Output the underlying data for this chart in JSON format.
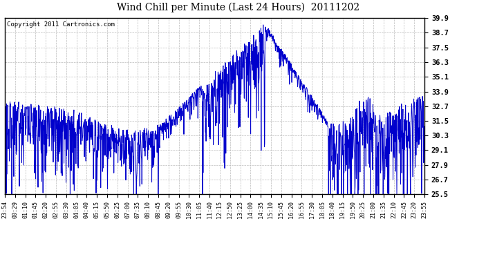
{
  "title": "Wind Chill per Minute (Last 24 Hours)  20111202",
  "copyright_text": "Copyright 2011 Cartronics.com",
  "line_color": "#0000cc",
  "background_color": "#ffffff",
  "grid_color": "#bbbbbb",
  "yticks": [
    25.5,
    26.7,
    27.9,
    29.1,
    30.3,
    31.5,
    32.7,
    33.9,
    35.1,
    36.3,
    37.5,
    38.7,
    39.9
  ],
  "ylim": [
    25.5,
    39.9
  ],
  "x_tick_labels": [
    "23:54",
    "00:29",
    "01:10",
    "01:45",
    "02:20",
    "02:55",
    "03:30",
    "04:05",
    "04:40",
    "05:15",
    "05:50",
    "06:25",
    "07:00",
    "07:35",
    "08:10",
    "08:45",
    "09:20",
    "09:55",
    "10:30",
    "11:05",
    "11:40",
    "12:15",
    "12:50",
    "13:25",
    "14:00",
    "14:35",
    "15:10",
    "15:45",
    "16:20",
    "16:55",
    "17:30",
    "18:05",
    "18:40",
    "19:15",
    "19:50",
    "20:25",
    "21:00",
    "21:35",
    "22:10",
    "22:45",
    "23:20",
    "23:55"
  ],
  "num_points": 1440,
  "figsize": [
    6.9,
    3.75
  ],
  "dpi": 100
}
